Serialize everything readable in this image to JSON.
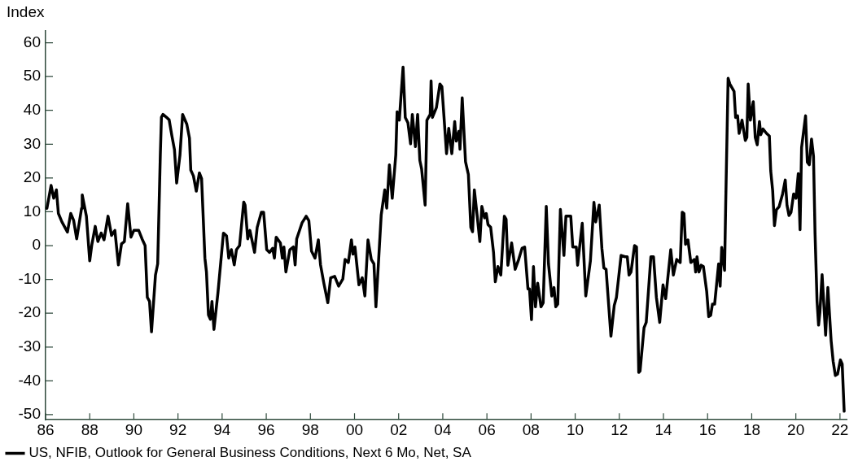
{
  "chart_data": {
    "type": "line",
    "ylabel": "Index",
    "legend": "bottom",
    "xlim": [
      1986,
      2022.3
    ],
    "ylim": [
      -51.5,
      63.5
    ],
    "xticks": [
      {
        "value": 1986,
        "label": "86"
      },
      {
        "value": 1988,
        "label": "88"
      },
      {
        "value": 1990,
        "label": "90"
      },
      {
        "value": 1992,
        "label": "92"
      },
      {
        "value": 1994,
        "label": "94"
      },
      {
        "value": 1996,
        "label": "96"
      },
      {
        "value": 1998,
        "label": "98"
      },
      {
        "value": 2000,
        "label": "00"
      },
      {
        "value": 2002,
        "label": "02"
      },
      {
        "value": 2004,
        "label": "04"
      },
      {
        "value": 2006,
        "label": "06"
      },
      {
        "value": 2008,
        "label": "08"
      },
      {
        "value": 2010,
        "label": "10"
      },
      {
        "value": 2012,
        "label": "12"
      },
      {
        "value": 2014,
        "label": "14"
      },
      {
        "value": 2016,
        "label": "16"
      },
      {
        "value": 2018,
        "label": "18"
      },
      {
        "value": 2020,
        "label": "20"
      },
      {
        "value": 2022,
        "label": "22"
      }
    ],
    "yticks": [
      -50,
      -40,
      -30,
      -20,
      -10,
      0,
      10,
      20,
      30,
      40,
      50,
      60
    ],
    "marker": "none",
    "line_style": "solid",
    "series": [
      {
        "name": "US, NFIB, Outlook for General Business Conditions, Next 6 Mo, Net, SA",
        "color": "#000000",
        "x": [
          1986.06,
          1986.25,
          1986.37,
          1986.49,
          1986.58,
          1986.74,
          1986.99,
          1987.14,
          1987.27,
          1987.41,
          1987.63,
          1987.66,
          1987.85,
          1988.0,
          1988.09,
          1988.25,
          1988.37,
          1988.52,
          1988.65,
          1988.83,
          1988.99,
          1989.14,
          1989.3,
          1989.44,
          1989.57,
          1989.72,
          1989.87,
          1990.0,
          1990.22,
          1990.37,
          1990.51,
          1990.61,
          1990.71,
          1990.8,
          1990.98,
          1991.08,
          1991.2,
          1991.25,
          1991.32,
          1991.47,
          1991.6,
          1991.72,
          1991.84,
          1991.94,
          1992.09,
          1992.21,
          1992.4,
          1992.52,
          1992.58,
          1992.7,
          1992.83,
          1992.97,
          1993.07,
          1993.22,
          1993.29,
          1993.38,
          1993.47,
          1993.54,
          1993.63,
          1993.81,
          1994.06,
          1994.2,
          1994.3,
          1994.42,
          1994.55,
          1994.65,
          1994.79,
          1994.98,
          1995.04,
          1995.16,
          1995.26,
          1995.47,
          1995.59,
          1995.78,
          1995.88,
          1996.02,
          1996.15,
          1996.29,
          1996.37,
          1996.45,
          1996.64,
          1996.73,
          1996.8,
          1996.89,
          1997.07,
          1997.23,
          1997.31,
          1997.38,
          1997.62,
          1997.81,
          1997.93,
          1998.05,
          1998.21,
          1998.36,
          1998.46,
          1998.61,
          1998.79,
          1998.92,
          1999.1,
          1999.28,
          1999.47,
          1999.57,
          1999.72,
          1999.86,
          1999.93,
          2000.02,
          2000.2,
          2000.35,
          2000.47,
          2000.61,
          2000.76,
          2000.88,
          2000.97,
          2001.21,
          2001.37,
          2001.46,
          2001.58,
          2001.71,
          2001.87,
          2001.93,
          2002.03,
          2002.2,
          2002.3,
          2002.42,
          2002.54,
          2002.62,
          2002.76,
          2002.86,
          2002.96,
          2003.04,
          2003.2,
          2003.28,
          2003.43,
          2003.47,
          2003.53,
          2003.71,
          2003.87,
          2003.96,
          2004.17,
          2004.27,
          2004.41,
          2004.54,
          2004.61,
          2004.73,
          2004.78,
          2004.88,
          2005.03,
          2005.16,
          2005.27,
          2005.35,
          2005.43,
          2005.56,
          2005.68,
          2005.77,
          2005.89,
          2005.97,
          2006.05,
          2006.17,
          2006.3,
          2006.38,
          2006.5,
          2006.63,
          2006.79,
          2006.87,
          2006.95,
          2007.12,
          2007.28,
          2007.44,
          2007.59,
          2007.71,
          2007.86,
          2007.93,
          2008.02,
          2008.11,
          2008.2,
          2008.3,
          2008.45,
          2008.55,
          2008.69,
          2008.79,
          2008.94,
          2009.04,
          2009.12,
          2009.21,
          2009.33,
          2009.49,
          2009.58,
          2009.8,
          2009.89,
          2010.05,
          2010.11,
          2010.32,
          2010.48,
          2010.69,
          2010.85,
          2010.93,
          2011.09,
          2011.21,
          2011.3,
          2011.4,
          2011.62,
          2011.77,
          2011.87,
          2012.08,
          2012.26,
          2012.36,
          2012.44,
          2012.53,
          2012.69,
          2012.78,
          2012.88,
          2012.94,
          2013.12,
          2013.22,
          2013.43,
          2013.55,
          2013.68,
          2013.83,
          2013.98,
          2014.1,
          2014.33,
          2014.45,
          2014.6,
          2014.76,
          2014.85,
          2014.93,
          2015.0,
          2015.11,
          2015.24,
          2015.4,
          2015.46,
          2015.52,
          2015.61,
          2015.71,
          2015.81,
          2015.96,
          2016.05,
          2016.14,
          2016.22,
          2016.32,
          2016.5,
          2016.57,
          2016.64,
          2016.77,
          2016.82,
          2016.93,
          2017.01,
          2017.2,
          2017.27,
          2017.36,
          2017.43,
          2017.56,
          2017.71,
          2017.78,
          2017.84,
          2017.94,
          2018.07,
          2018.16,
          2018.25,
          2018.35,
          2018.41,
          2018.51,
          2018.67,
          2018.8,
          2018.86,
          2018.95,
          2019.03,
          2019.12,
          2019.24,
          2019.4,
          2019.52,
          2019.6,
          2019.69,
          2019.78,
          2019.9,
          2020.01,
          2020.11,
          2020.19,
          2020.26,
          2020.44,
          2020.52,
          2020.61,
          2020.71,
          2020.8,
          2020.87,
          2020.96,
          2021.03,
          2021.09,
          2021.19,
          2021.35,
          2021.45,
          2021.6,
          2021.69,
          2021.79,
          2021.89,
          2022.02,
          2022.1,
          2022.19
        ],
        "values": [
          11,
          17.8,
          14,
          16.5,
          9.5,
          7,
          4,
          9.5,
          7.5,
          2,
          11,
          15,
          8.7,
          -4.5,
          0,
          5.7,
          1.2,
          3.7,
          1.7,
          8.7,
          3,
          4.5,
          -5.7,
          0.5,
          1.2,
          12.4,
          2.5,
          4.5,
          4.5,
          2,
          0,
          -15.3,
          -16.5,
          -25.5,
          -8.7,
          -5.4,
          27,
          38,
          38.8,
          38,
          37.2,
          32.6,
          28.4,
          18.5,
          26.8,
          38.8,
          35.9,
          31.8,
          22.3,
          20.6,
          16.1,
          21.5,
          19.8,
          -3.7,
          -7.8,
          -20.5,
          -21.8,
          -16.5,
          -24.8,
          -14,
          3.7,
          2.9,
          -3.7,
          -1.2,
          -5.7,
          -1.2,
          0,
          12.9,
          12,
          2,
          4.5,
          -2,
          5.4,
          9.9,
          9.9,
          -1.2,
          -2,
          -0.8,
          -3.7,
          2.5,
          0.8,
          -3.7,
          -0.4,
          -7.8,
          -1.2,
          -0.4,
          -5.7,
          2,
          6.7,
          8.7,
          7.4,
          -1.6,
          -3.7,
          1.7,
          -5.7,
          -11.1,
          -16.9,
          -9.5,
          -9.1,
          -12,
          -9.9,
          -4.1,
          -5,
          1.7,
          -2.5,
          -0.4,
          -11.6,
          -9.5,
          -14.9,
          1.7,
          -4.1,
          -5.4,
          -18.1,
          9.1,
          16.5,
          11.1,
          23.9,
          14,
          26.8,
          39.6,
          37.1,
          52.8,
          37.9,
          36.3,
          30.1,
          38.8,
          29.3,
          38.8,
          25.2,
          22.7,
          12,
          37.1,
          38.8,
          48.7,
          37.9,
          40.8,
          47.8,
          47,
          27.2,
          34.7,
          27.2,
          36.7,
          30.9,
          33.8,
          28.5,
          43.7,
          24.8,
          21,
          5.4,
          4.1,
          16.5,
          8.7,
          1.2,
          11.6,
          8.2,
          9.5,
          6.2,
          5.4,
          -2,
          -10.7,
          -6.2,
          -8.7,
          8.7,
          7.8,
          -5.8,
          0.8,
          -7,
          -4.1,
          -0.8,
          -0.4,
          -12.8,
          -12.8,
          -21.9,
          -6.2,
          -18.1,
          -11.1,
          -18.1,
          -16.9,
          11.6,
          -5.4,
          -14.9,
          -12.4,
          -18.1,
          -17.3,
          10.7,
          -2.9,
          8.7,
          8.7,
          -0.4,
          -0.4,
          -5.8,
          6.6,
          -14.9,
          -4.5,
          12.8,
          7,
          12,
          -0.8,
          -6.6,
          -7,
          -26.8,
          -17.7,
          -15.3,
          -2.9,
          -3.3,
          -3.3,
          -8.7,
          -7.8,
          0,
          -0.4,
          -37.5,
          -37.1,
          -24.3,
          -22.7,
          -3.3,
          -3.3,
          -15.3,
          -22.7,
          -11.6,
          -15.7,
          -1.2,
          -8.7,
          -4.1,
          -5,
          9.9,
          9.5,
          0.4,
          1.7,
          -5,
          -4.1,
          -7.8,
          -3.3,
          -7.8,
          -5.8,
          -6.2,
          -13.6,
          -21,
          -20.6,
          -17.3,
          -17.3,
          -5.4,
          -12,
          -0.5,
          -7.3,
          11.9,
          49.5,
          47.8,
          45.6,
          37.9,
          38.4,
          33.2,
          37.1,
          31.1,
          32,
          47.8,
          37.1,
          42.6,
          32,
          29.8,
          36.7,
          32.8,
          34.5,
          33.2,
          32.4,
          22.2,
          16.2,
          5.9,
          10.6,
          11.5,
          15.3,
          19.4,
          11.9,
          8.9,
          9.8,
          15.3,
          14,
          21.3,
          4.7,
          29,
          38.4,
          24.7,
          23.9,
          31.5,
          26.4,
          3.5,
          -16.3,
          -23.5,
          -19.7,
          -8.6,
          -26.5,
          -12.4,
          -28.2,
          -34.2,
          -38.4,
          -38,
          -33.8,
          -35,
          -49
        ]
      }
    ]
  }
}
